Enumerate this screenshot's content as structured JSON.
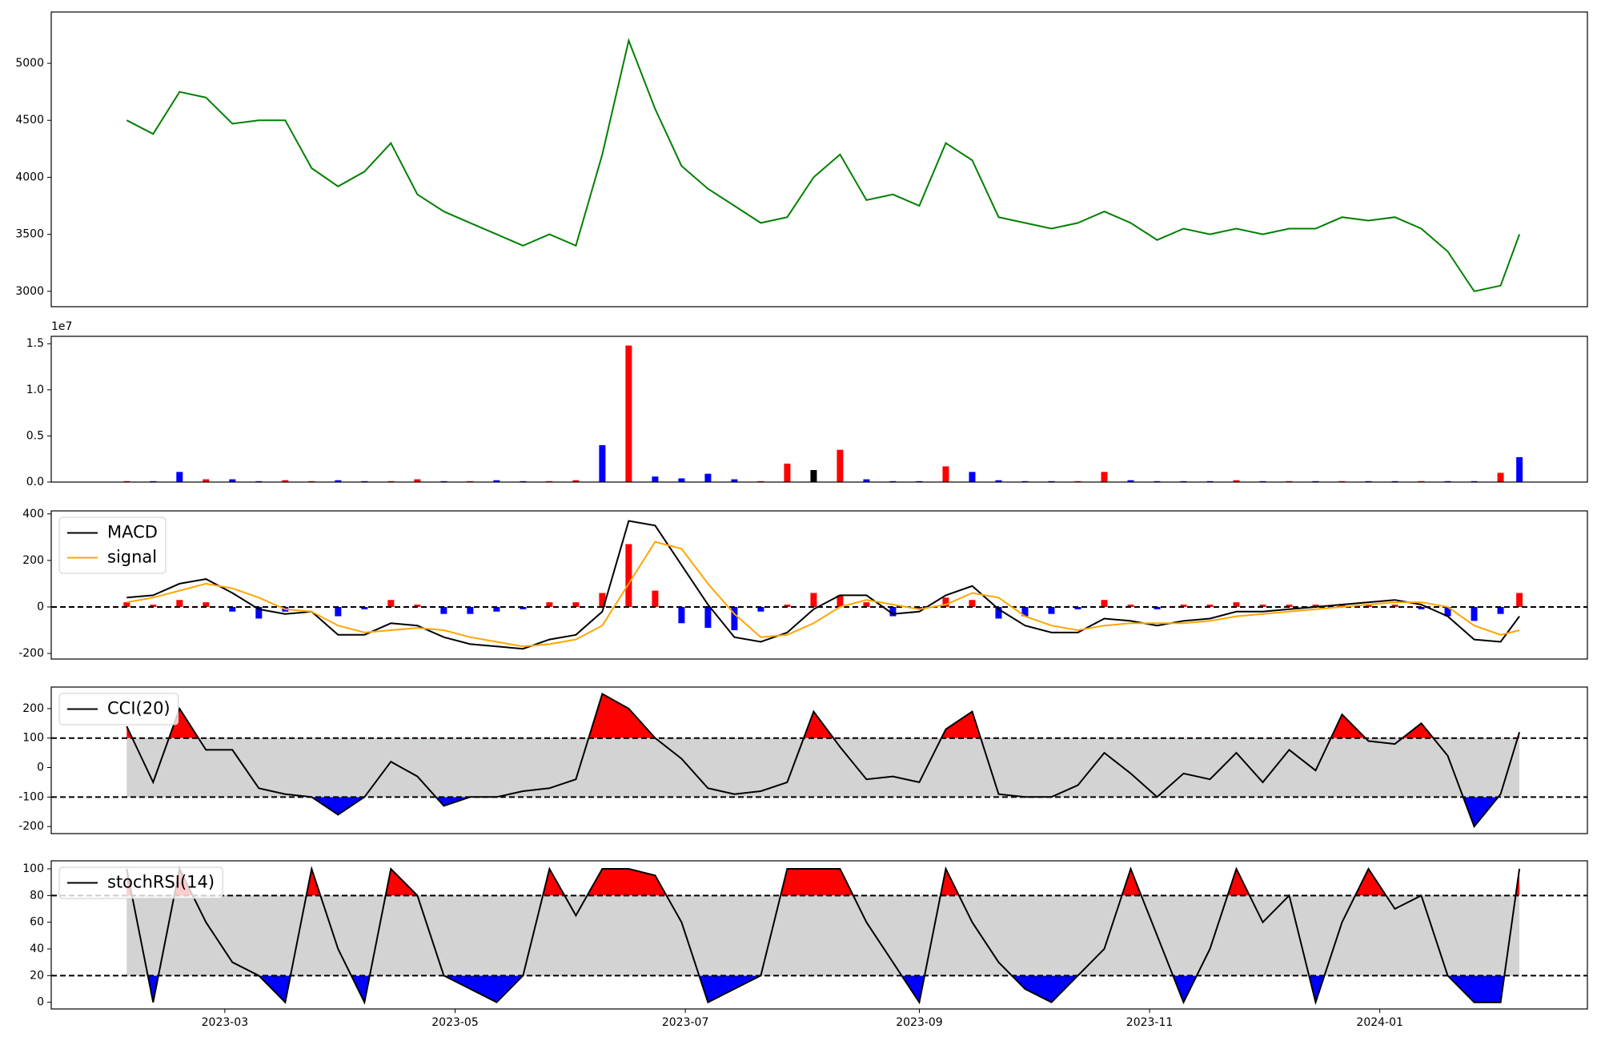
{
  "chart_data": [
    {
      "type": "line",
      "color": "#008000",
      "x": [
        "2023-02-03",
        "2023-02-10",
        "2023-02-17",
        "2023-02-24",
        "2023-03-03",
        "2023-03-10",
        "2023-03-17",
        "2023-03-24",
        "2023-03-31",
        "2023-04-07",
        "2023-04-14",
        "2023-04-21",
        "2023-04-28",
        "2023-05-05",
        "2023-05-12",
        "2023-05-19",
        "2023-05-26",
        "2023-06-02",
        "2023-06-09",
        "2023-06-16",
        "2023-06-23",
        "2023-06-30",
        "2023-07-07",
        "2023-07-14",
        "2023-07-21",
        "2023-07-28",
        "2023-08-04",
        "2023-08-11",
        "2023-08-18",
        "2023-08-25",
        "2023-09-01",
        "2023-09-08",
        "2023-09-15",
        "2023-09-22",
        "2023-09-29",
        "2023-10-06",
        "2023-10-13",
        "2023-10-20",
        "2023-10-27",
        "2023-11-03",
        "2023-11-10",
        "2023-11-17",
        "2023-11-24",
        "2023-12-01",
        "2023-12-08",
        "2023-12-15",
        "2023-12-22",
        "2023-12-29",
        "2024-01-05",
        "2024-01-12",
        "2024-01-19",
        "2024-01-26",
        "2024-02-02",
        "2024-02-07"
      ],
      "values": [
        4500,
        4380,
        4750,
        4700,
        4470,
        4500,
        4500,
        4080,
        3920,
        4050,
        4300,
        3850,
        3700,
        3600,
        3500,
        3400,
        3500,
        3400,
        4200,
        5200,
        4600,
        4100,
        3900,
        3750,
        3600,
        3650,
        4000,
        4200,
        3800,
        3850,
        3750,
        4300,
        4150,
        3650,
        3600,
        3550,
        3600,
        3700,
        3600,
        3450,
        3550,
        3500,
        3550,
        3500,
        3550,
        3550,
        3650,
        3620,
        3650,
        3550,
        3350,
        3000,
        3050,
        3500
      ],
      "xlim": [
        "2023-01-14",
        "2024-02-25"
      ],
      "ylim": [
        2865,
        5450
      ],
      "yticks": [
        3000,
        3500,
        4000,
        4500,
        5000
      ]
    },
    {
      "type": "bar",
      "offset_text": "1e7",
      "x": [
        "2023-02-03",
        "2023-02-10",
        "2023-02-17",
        "2023-02-24",
        "2023-03-03",
        "2023-03-10",
        "2023-03-17",
        "2023-03-24",
        "2023-03-31",
        "2023-04-07",
        "2023-04-14",
        "2023-04-21",
        "2023-04-28",
        "2023-05-05",
        "2023-05-12",
        "2023-05-19",
        "2023-05-26",
        "2023-06-02",
        "2023-06-09",
        "2023-06-16",
        "2023-06-23",
        "2023-06-30",
        "2023-07-07",
        "2023-07-14",
        "2023-07-21",
        "2023-07-28",
        "2023-08-04",
        "2023-08-11",
        "2023-08-18",
        "2023-08-25",
        "2023-09-01",
        "2023-09-08",
        "2023-09-15",
        "2023-09-22",
        "2023-09-29",
        "2023-10-06",
        "2023-10-13",
        "2023-10-20",
        "2023-10-27",
        "2023-11-03",
        "2023-11-10",
        "2023-11-17",
        "2023-11-24",
        "2023-12-01",
        "2023-12-08",
        "2023-12-15",
        "2023-12-22",
        "2023-12-29",
        "2024-01-05",
        "2024-01-12",
        "2024-01-19",
        "2024-01-26",
        "2024-02-02",
        "2024-02-07"
      ],
      "values": [
        0.01,
        0.01,
        0.11,
        0.03,
        0.03,
        0.01,
        0.02,
        0.01,
        0.02,
        0.01,
        0.01,
        0.03,
        0.01,
        0.01,
        0.02,
        0.01,
        0.01,
        0.02,
        0.4,
        1.48,
        0.06,
        0.04,
        0.09,
        0.03,
        0.01,
        0.2,
        0.13,
        0.35,
        0.03,
        0.01,
        0.01,
        0.17,
        0.11,
        0.02,
        0.01,
        0.01,
        0.01,
        0.11,
        0.02,
        0.01,
        0.01,
        0.01,
        0.02,
        0.01,
        0.01,
        0.01,
        0.01,
        0.01,
        0.01,
        0.01,
        0.01,
        0.01,
        0.1,
        0.27
      ],
      "colors": [
        "red",
        "blue",
        "blue",
        "red",
        "blue",
        "blue",
        "red",
        "red",
        "blue",
        "blue",
        "red",
        "red",
        "blue",
        "red",
        "blue",
        "blue",
        "red",
        "red",
        "blue",
        "red",
        "blue",
        "blue",
        "blue",
        "blue",
        "red",
        "red",
        "black",
        "red",
        "blue",
        "blue",
        "blue",
        "red",
        "blue",
        "blue",
        "blue",
        "blue",
        "red",
        "red",
        "blue",
        "blue",
        "blue",
        "blue",
        "red",
        "blue",
        "red",
        "blue",
        "red",
        "blue",
        "blue",
        "red",
        "blue",
        "blue",
        "red",
        "blue"
      ],
      "xlim": [
        "2023-01-14",
        "2024-02-25"
      ],
      "ylim": [
        0,
        1.58
      ],
      "yticks": [
        {
          "value": 0,
          "label": "0.0"
        },
        0.5,
        {
          "value": 1,
          "label": "1.0"
        },
        1.5
      ]
    },
    {
      "type": "macd",
      "legend": "upper left",
      "x": [
        "2023-02-03",
        "2023-02-10",
        "2023-02-17",
        "2023-02-24",
        "2023-03-03",
        "2023-03-10",
        "2023-03-17",
        "2023-03-24",
        "2023-03-31",
        "2023-04-07",
        "2023-04-14",
        "2023-04-21",
        "2023-04-28",
        "2023-05-05",
        "2023-05-12",
        "2023-05-19",
        "2023-05-26",
        "2023-06-02",
        "2023-06-09",
        "2023-06-16",
        "2023-06-23",
        "2023-06-30",
        "2023-07-07",
        "2023-07-14",
        "2023-07-21",
        "2023-07-28",
        "2023-08-04",
        "2023-08-11",
        "2023-08-18",
        "2023-08-25",
        "2023-09-01",
        "2023-09-08",
        "2023-09-15",
        "2023-09-22",
        "2023-09-29",
        "2023-10-06",
        "2023-10-13",
        "2023-10-20",
        "2023-10-27",
        "2023-11-03",
        "2023-11-10",
        "2023-11-17",
        "2023-11-24",
        "2023-12-01",
        "2023-12-08",
        "2023-12-15",
        "2023-12-22",
        "2023-12-29",
        "2024-01-05",
        "2024-01-12",
        "2024-01-19",
        "2024-01-26",
        "2024-02-02",
        "2024-02-07"
      ],
      "series": [
        {
          "name": "MACD",
          "color": "#000000",
          "values": [
            40,
            50,
            100,
            120,
            60,
            -10,
            -30,
            -20,
            -120,
            -120,
            -70,
            -80,
            -130,
            -160,
            -170,
            -180,
            -140,
            -120,
            -20,
            370,
            350,
            180,
            10,
            -130,
            -150,
            -110,
            -10,
            50,
            50,
            -30,
            -20,
            50,
            90,
            -10,
            -80,
            -110,
            -110,
            -50,
            -60,
            -80,
            -60,
            -50,
            -20,
            -20,
            -10,
            0,
            10,
            20,
            30,
            10,
            -40,
            -140,
            -150,
            -40
          ]
        },
        {
          "name": "signal",
          "color": "#ffa500",
          "values": [
            20,
            40,
            70,
            100,
            80,
            40,
            -10,
            -20,
            -80,
            -110,
            -100,
            -90,
            -100,
            -130,
            -150,
            -170,
            -160,
            -140,
            -80,
            100,
            280,
            250,
            100,
            -30,
            -130,
            -120,
            -70,
            0,
            30,
            10,
            -10,
            10,
            60,
            40,
            -40,
            -80,
            -100,
            -80,
            -70,
            -70,
            -70,
            -60,
            -40,
            -30,
            -20,
            -10,
            0,
            10,
            20,
            20,
            0,
            -80,
            -120,
            -100
          ]
        }
      ],
      "histogram": {
        "up_color": "red",
        "down_color": "blue",
        "values": [
          20,
          10,
          30,
          20,
          -20,
          -50,
          -20,
          0,
          -40,
          -10,
          30,
          10,
          -30,
          -30,
          -20,
          -10,
          20,
          20,
          60,
          270,
          70,
          -70,
          -90,
          -100,
          -20,
          10,
          60,
          50,
          20,
          -40,
          -10,
          40,
          30,
          -50,
          -40,
          -30,
          -10,
          30,
          10,
          -10,
          10,
          10,
          20,
          10,
          10,
          10,
          10,
          10,
          10,
          -10,
          -40,
          -60,
          -30,
          60
        ]
      },
      "hlines": [
        0
      ],
      "xlim": [
        "2023-01-14",
        "2024-02-25"
      ],
      "ylim": [
        -224,
        413
      ],
      "yticks": [
        -200,
        0,
        200,
        400
      ]
    },
    {
      "type": "band",
      "legend": "upper left",
      "band_color": "#d3d3d3",
      "above_color": "red",
      "below_color": "blue",
      "x": [
        "2023-02-03",
        "2023-02-10",
        "2023-02-17",
        "2023-02-24",
        "2023-03-03",
        "2023-03-10",
        "2023-03-17",
        "2023-03-24",
        "2023-03-31",
        "2023-04-07",
        "2023-04-14",
        "2023-04-21",
        "2023-04-28",
        "2023-05-05",
        "2023-05-12",
        "2023-05-19",
        "2023-05-26",
        "2023-06-02",
        "2023-06-09",
        "2023-06-16",
        "2023-06-23",
        "2023-06-30",
        "2023-07-07",
        "2023-07-14",
        "2023-07-21",
        "2023-07-28",
        "2023-08-04",
        "2023-08-11",
        "2023-08-18",
        "2023-08-25",
        "2023-09-01",
        "2023-09-08",
        "2023-09-15",
        "2023-09-22",
        "2023-09-29",
        "2023-10-06",
        "2023-10-13",
        "2023-10-20",
        "2023-10-27",
        "2023-11-03",
        "2023-11-10",
        "2023-11-17",
        "2023-11-24",
        "2023-12-01",
        "2023-12-08",
        "2023-12-15",
        "2023-12-22",
        "2023-12-29",
        "2024-01-05",
        "2024-01-12",
        "2024-01-19",
        "2024-01-26",
        "2024-02-02",
        "2024-02-07"
      ],
      "series": [
        {
          "name": "CCI(20)",
          "color": "#000000",
          "values": [
            140,
            -50,
            200,
            60,
            60,
            -70,
            -90,
            -100,
            -160,
            -100,
            20,
            -30,
            -130,
            -100,
            -100,
            -80,
            -70,
            -40,
            250,
            200,
            100,
            30,
            -70,
            -90,
            -80,
            -50,
            190,
            70,
            -40,
            -30,
            -50,
            130,
            190,
            -90,
            -100,
            -100,
            -60,
            50,
            -20,
            -100,
            -20,
            -40,
            50,
            -50,
            60,
            -10,
            180,
            90,
            80,
            150,
            40,
            -200,
            -90,
            120
          ]
        }
      ],
      "hlines": [
        100,
        -100
      ],
      "xlim": [
        "2023-01-14",
        "2024-02-25"
      ],
      "ylim": [
        -224,
        273
      ],
      "yticks": [
        -200,
        -100,
        0,
        100,
        200
      ]
    },
    {
      "type": "band",
      "legend": "upper left",
      "band_color": "#d3d3d3",
      "above_color": "red",
      "below_color": "blue",
      "x": [
        "2023-02-03",
        "2023-02-10",
        "2023-02-17",
        "2023-02-24",
        "2023-03-03",
        "2023-03-10",
        "2023-03-17",
        "2023-03-24",
        "2023-03-31",
        "2023-04-07",
        "2023-04-14",
        "2023-04-21",
        "2023-04-28",
        "2023-05-05",
        "2023-05-12",
        "2023-05-19",
        "2023-05-26",
        "2023-06-02",
        "2023-06-09",
        "2023-06-16",
        "2023-06-23",
        "2023-06-30",
        "2023-07-07",
        "2023-07-14",
        "2023-07-21",
        "2023-07-28",
        "2023-08-04",
        "2023-08-11",
        "2023-08-18",
        "2023-08-25",
        "2023-09-01",
        "2023-09-08",
        "2023-09-15",
        "2023-09-22",
        "2023-09-29",
        "2023-10-06",
        "2023-10-13",
        "2023-10-20",
        "2023-10-27",
        "2023-11-03",
        "2023-11-10",
        "2023-11-17",
        "2023-11-24",
        "2023-12-01",
        "2023-12-08",
        "2023-12-15",
        "2023-12-22",
        "2023-12-29",
        "2024-01-05",
        "2024-01-12",
        "2024-01-19",
        "2024-01-26",
        "2024-02-02",
        "2024-02-07"
      ],
      "series": [
        {
          "name": "stochRSI(14)",
          "color": "#000000",
          "values": [
            100,
            0,
            100,
            60,
            30,
            20,
            0,
            100,
            40,
            0,
            100,
            80,
            20,
            10,
            0,
            20,
            100,
            65,
            100,
            100,
            95,
            60,
            0,
            10,
            20,
            100,
            100,
            100,
            60,
            30,
            0,
            100,
            60,
            30,
            10,
            0,
            20,
            40,
            100,
            50,
            0,
            40,
            100,
            60,
            80,
            0,
            60,
            100,
            70,
            80,
            20,
            0,
            0,
            100
          ]
        }
      ],
      "hlines": [
        80,
        20
      ],
      "xlim": [
        "2023-01-14",
        "2024-02-25"
      ],
      "ylim": [
        -5,
        106
      ],
      "yticks": [
        0,
        20,
        40,
        60,
        80,
        100
      ],
      "xticks": [
        {
          "value": "2023-03-01",
          "label": "2023-03"
        },
        {
          "value": "2023-05-01",
          "label": "2023-05"
        },
        {
          "value": "2023-07-01",
          "label": "2023-07"
        },
        {
          "value": "2023-09-01",
          "label": "2023-09"
        },
        {
          "value": "2023-11-01",
          "label": "2023-11"
        },
        {
          "value": "2024-01-01",
          "label": "2024-01"
        }
      ]
    }
  ]
}
